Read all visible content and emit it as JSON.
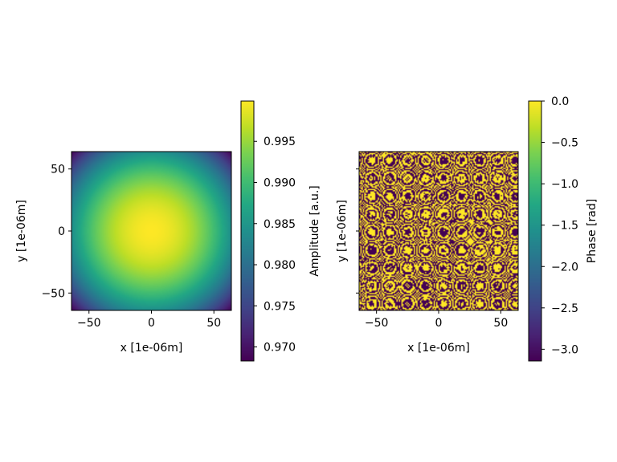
{
  "chart_data": [
    {
      "type": "heatmap",
      "title": "",
      "xlabel": "x [1e-06m]",
      "ylabel": "y [1e-06m]",
      "xlim": [
        -64,
        64
      ],
      "ylim": [
        -64,
        64
      ],
      "xticks": [
        -50,
        0,
        50
      ],
      "yticks": [
        -50,
        0,
        50
      ],
      "ytick_labels_visible": true,
      "field": "gaussian amplitude, maximum at center (0, 0), minimum at corners",
      "value_range": [
        0.9683,
        0.9999
      ],
      "center_value": 0.9999,
      "corner_value": 0.9683,
      "colormap": "viridis",
      "colorbar": {
        "label": "Amplitude [a.u.]",
        "ticks": [
          "0.970",
          "0.975",
          "0.980",
          "0.985",
          "0.990",
          "0.995"
        ],
        "tick_values": [
          0.97,
          0.975,
          0.98,
          0.985,
          0.99,
          0.995
        ],
        "range": [
          0.9683,
          0.9999
        ]
      },
      "grid": false
    },
    {
      "type": "heatmap",
      "title": "",
      "xlabel": "x [1e-06m]",
      "ylabel": "y [1e-06m]",
      "xlim": [
        -64,
        64
      ],
      "ylim": [
        -64,
        64
      ],
      "xticks": [
        -50,
        0,
        50
      ],
      "yticks": [
        -50,
        0,
        50
      ],
      "ytick_labels_visible": false,
      "field": "phase, rapidly wrapping between -3.14 and 0 rad (aliased binary-looking pattern)",
      "value_range": [
        -3.1416,
        0.0
      ],
      "colormap": "viridis",
      "colorbar": {
        "label": "Phase [rad]",
        "ticks": [
          "0.0",
          "−0.5",
          "−1.0",
          "−1.5",
          "−2.0",
          "−2.5",
          "−3.0"
        ],
        "tick_values": [
          0.0,
          -0.5,
          -1.0,
          -1.5,
          -2.0,
          -2.5,
          -3.0
        ],
        "range": [
          -3.1416,
          0.0
        ]
      },
      "grid": false
    }
  ],
  "colors": {
    "viridis_low": "#440154",
    "viridis_mid": "#21918c",
    "viridis_high": "#fde725"
  }
}
